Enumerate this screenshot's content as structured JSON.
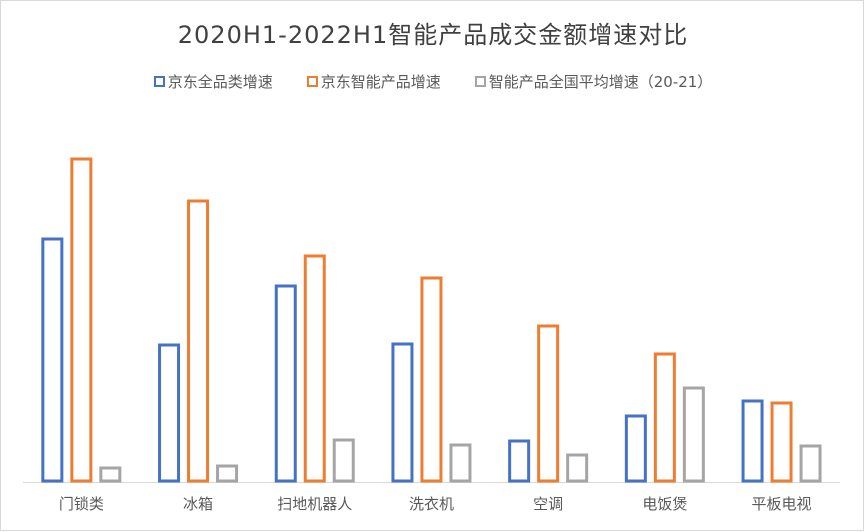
{
  "chart_data": {
    "type": "bar",
    "title": "2020H1-2022H1智能产品成交金额增速对比",
    "categories": [
      "门锁类",
      "冰箱",
      "扫地机器人",
      "洗衣机",
      "空调",
      "电饭煲",
      "平板电视"
    ],
    "series": [
      {
        "name": "京东全品类增速",
        "color": "#4472c4",
        "values": [
          242,
          136,
          195,
          137,
          40,
          65,
          80
        ]
      },
      {
        "name": "京东智能产品增速",
        "color": "#ed7d31",
        "values": [
          322,
          280,
          225,
          203,
          155,
          127,
          78
        ]
      },
      {
        "name": "智能产品全国平均增速（20-21）",
        "color": "#a5a5a5",
        "values": [
          13,
          15,
          41,
          36,
          26,
          93,
          35
        ]
      }
    ],
    "ylim": [
      0,
      340
    ],
    "grid": false,
    "legend": "top",
    "bar_style": "outlined"
  }
}
